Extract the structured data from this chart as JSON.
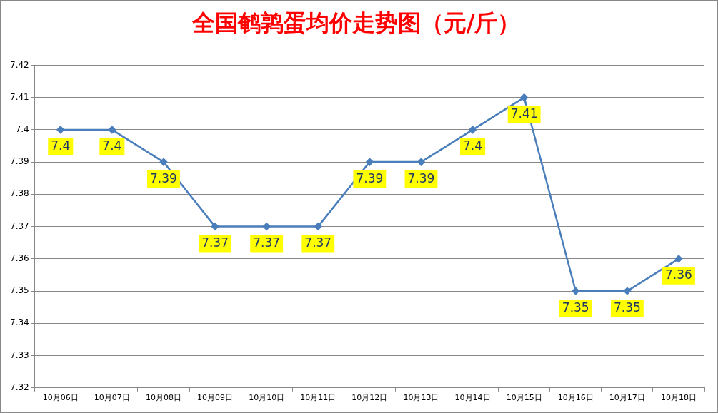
{
  "chart_data": {
    "type": "line",
    "title": "全国鹌鹑蛋均价走势图（元/斤）",
    "categories": [
      "10月06日",
      "10月07日",
      "10月08日",
      "10月09日",
      "10月10日",
      "10月11日",
      "10月12日",
      "10月13日",
      "10月14日",
      "10月15日",
      "10月16日",
      "10月17日",
      "10月18日"
    ],
    "series": [
      {
        "color": "#4a7ebb",
        "values": [
          7.4,
          7.4,
          7.39,
          7.37,
          7.37,
          7.37,
          7.39,
          7.39,
          7.4,
          7.41,
          7.35,
          7.35,
          7.36
        ]
      }
    ],
    "ylim": [
      7.32,
      7.42
    ],
    "yticks": [
      7.32,
      7.33,
      7.34,
      7.35,
      7.36,
      7.37,
      7.38,
      7.39,
      7.4,
      7.41,
      7.42
    ],
    "grid": "y",
    "legend": false,
    "marker": "diamond",
    "line_style": "solid",
    "data_labels": true
  }
}
